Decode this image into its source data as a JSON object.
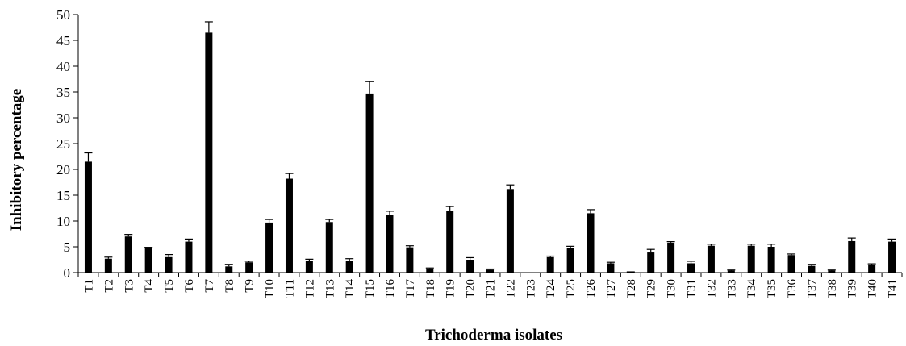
{
  "chart_data": {
    "type": "bar",
    "xlabel": "Trichoderma isolates",
    "ylabel": "Inhibitory percentage",
    "ylim": [
      0,
      50
    ],
    "yticks": [
      0,
      5,
      10,
      15,
      20,
      25,
      30,
      35,
      40,
      45,
      50
    ],
    "categories": [
      "T1",
      "T2",
      "T3",
      "T4",
      "T5",
      "T6",
      "T7",
      "T8",
      "T9",
      "T10",
      "T11",
      "T12",
      "T13",
      "T14",
      "T15",
      "T16",
      "T17",
      "T18",
      "T19",
      "T20",
      "T21",
      "T22",
      "T23",
      "T24",
      "T25",
      "T26",
      "T27",
      "T28",
      "T29",
      "T30",
      "T31",
      "T32",
      "T33",
      "T34",
      "T35",
      "T36",
      "T37",
      "T38",
      "T39",
      "T40",
      "T41"
    ],
    "values": [
      21.5,
      2.7,
      7.0,
      4.7,
      3.0,
      6.0,
      46.5,
      1.2,
      2.0,
      9.7,
      18.2,
      2.3,
      9.8,
      2.3,
      34.7,
      11.2,
      4.9,
      0.8,
      12.0,
      2.5,
      0.6,
      16.2,
      0.0,
      3.0,
      4.7,
      11.5,
      1.8,
      0.1,
      3.9,
      5.8,
      1.8,
      5.2,
      0.4,
      5.2,
      5.0,
      3.4,
      1.3,
      0.4,
      6.1,
      1.5,
      6.0
    ],
    "errors": [
      1.7,
      0.3,
      0.4,
      0.2,
      0.5,
      0.5,
      2.1,
      0.4,
      0.2,
      0.6,
      1.0,
      0.3,
      0.5,
      0.4,
      2.3,
      0.7,
      0.3,
      0.1,
      0.8,
      0.4,
      0.1,
      0.8,
      0.0,
      0.2,
      0.4,
      0.7,
      0.2,
      0.05,
      0.6,
      0.2,
      0.4,
      0.3,
      0.1,
      0.3,
      0.5,
      0.2,
      0.3,
      0.1,
      0.6,
      0.2,
      0.5
    ],
    "bar_color": "#000000",
    "grid": false
  }
}
